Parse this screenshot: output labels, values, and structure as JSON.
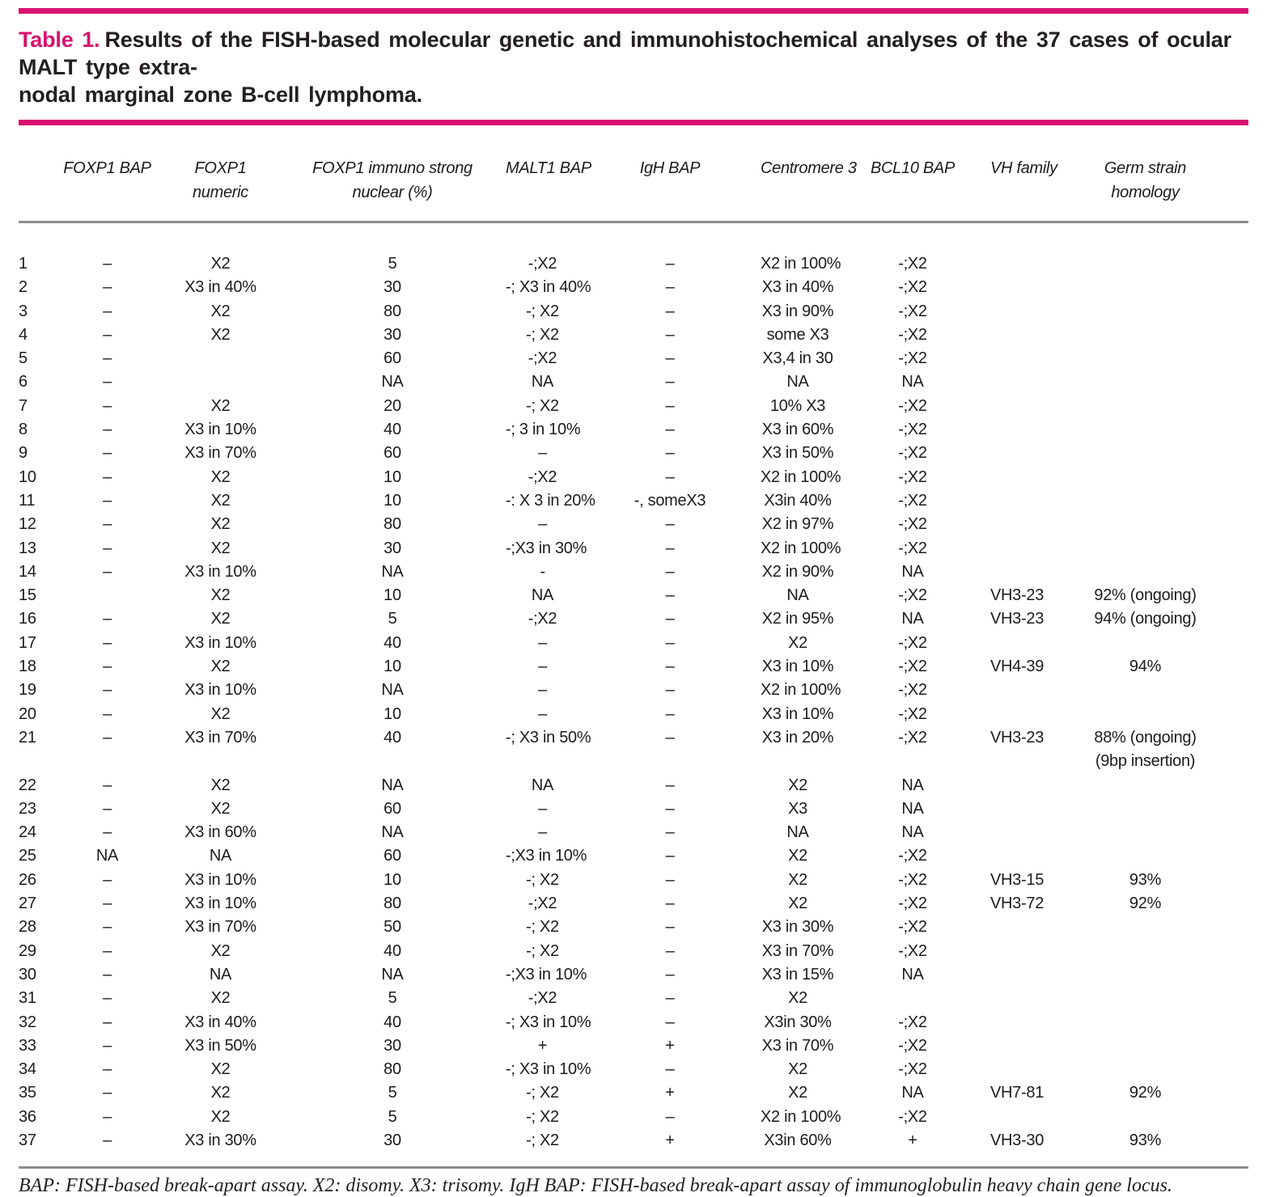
{
  "colors": {
    "accent_magenta": "#d8116f",
    "rule_gray": "#8c8c8c",
    "text": "#231f20"
  },
  "title": {
    "label": "Table 1.",
    "line1": "Results of the FISH-based molecular genetic and immunohistochemical analyses of the 37 cases of ocular MALT type extra-",
    "line2": "nodal marginal zone B-cell lymphoma."
  },
  "table": {
    "columns": [
      {
        "id": "case",
        "label": "",
        "label2": ""
      },
      {
        "id": "foxp1-bap",
        "label": "FOXP1 BAP",
        "label2": ""
      },
      {
        "id": "foxp1-numeric",
        "label": "FOXP1",
        "label2": "numeric"
      },
      {
        "id": "foxp1-immuno",
        "label": "FOXP1 immuno strong",
        "label2": "nuclear (%)"
      },
      {
        "id": "malt1-bap",
        "label": "MALT1 BAP",
        "label2": ""
      },
      {
        "id": "igh-bap",
        "label": "IgH BAP",
        "label2": ""
      },
      {
        "id": "centromere-3",
        "label": "Centromere 3",
        "label2": ""
      },
      {
        "id": "bcl10-bap",
        "label": "BCL10 BAP",
        "label2": ""
      },
      {
        "id": "vh-family",
        "label": "VH family",
        "label2": ""
      },
      {
        "id": "germ-strain",
        "label": "Germ strain",
        "label2": "homology"
      }
    ],
    "rows": [
      [
        "1",
        "–",
        "X2",
        "5",
        "-;X2",
        "–",
        "X2 in 100%",
        "-;X2",
        "",
        ""
      ],
      [
        "2",
        "–",
        "X3 in 40%",
        "30",
        "-; X3 in 40%",
        "–",
        "X3 in 40%",
        "-;X2",
        "",
        ""
      ],
      [
        "3",
        "–",
        "X2",
        "80",
        "-; X2",
        "–",
        "X3 in 90%",
        "-;X2",
        "",
        ""
      ],
      [
        "4",
        "–",
        "X2",
        "30",
        "-; X2",
        "–",
        "some X3",
        "-;X2",
        "",
        ""
      ],
      [
        "5",
        "–",
        "",
        "60",
        "-;X2",
        "–",
        "X3,4 in 30",
        "-;X2",
        "",
        ""
      ],
      [
        "6",
        "–",
        "",
        "NA",
        "NA",
        "–",
        "NA",
        "NA",
        "",
        ""
      ],
      [
        "7",
        "–",
        "X2",
        "20",
        "-; X2",
        "–",
        "10% X3",
        "-;X2",
        "",
        ""
      ],
      [
        "8",
        "–",
        "X3 in 10%",
        "40",
        "-; 3 in 10%",
        "–",
        "X3 in 60%",
        "-;X2",
        "",
        ""
      ],
      [
        "9",
        "–",
        "X3 in 70%",
        "60",
        "–",
        "–",
        "X3 in 50%",
        "-;X2",
        "",
        ""
      ],
      [
        "10",
        "–",
        "X2",
        "10",
        "-;X2",
        "–",
        "X2 in 100%",
        "-;X2",
        "",
        ""
      ],
      [
        "11",
        "–",
        "X2",
        "10",
        "-: X 3 in 20%",
        "-, someX3",
        "X3in 40%",
        "-;X2",
        "",
        ""
      ],
      [
        "12",
        "–",
        "X2",
        "80",
        "–",
        "–",
        "X2 in 97%",
        "-;X2",
        "",
        ""
      ],
      [
        "13",
        "–",
        "X2",
        "30",
        "-;X3 in 30%",
        "–",
        "X2 in 100%",
        "-;X2",
        "",
        ""
      ],
      [
        "14",
        "–",
        "X3 in 10%",
        "NA",
        "-",
        "–",
        "X2 in 90%",
        "NA",
        "",
        ""
      ],
      [
        "15",
        "",
        "X2",
        "10",
        "NA",
        "–",
        "NA",
        "-;X2",
        "VH3-23",
        "92% (ongoing)"
      ],
      [
        "16",
        "–",
        "X2",
        "5",
        "-;X2",
        "–",
        "X2 in 95%",
        "NA",
        "VH3-23",
        "94% (ongoing)"
      ],
      [
        "17",
        "–",
        "X3 in 10%",
        "40",
        "–",
        "–",
        "X2",
        "-;X2",
        "",
        ""
      ],
      [
        "18",
        "–",
        "X2",
        "10",
        "–",
        "–",
        "X3 in 10%",
        "-;X2",
        "VH4-39",
        "94%"
      ],
      [
        "19",
        "–",
        "X3 in 10%",
        "NA",
        "–",
        "–",
        "X2 in 100%",
        "-;X2",
        "",
        ""
      ],
      [
        "20",
        "–",
        "X2",
        "10",
        "–",
        "–",
        "X3 in 10%",
        "-;X2",
        "",
        ""
      ],
      [
        "21",
        "–",
        "X3 in 70%",
        "40",
        "-; X3 in 50%",
        "–",
        "X3 in 20%",
        "-;X2",
        "VH3-23",
        "88% (ongoing)\n(9bp insertion)"
      ],
      [
        "22",
        "–",
        "X2",
        "NA",
        "NA",
        "–",
        "X2",
        "NA",
        "",
        ""
      ],
      [
        "23",
        "–",
        "X2",
        "60",
        "–",
        "–",
        "X3",
        "NA",
        "",
        ""
      ],
      [
        "24",
        "–",
        "X3 in 60%",
        "NA",
        "–",
        "–",
        "NA",
        "NA",
        "",
        ""
      ],
      [
        "25",
        "NA",
        "NA",
        "60",
        "-;X3 in 10%",
        "–",
        "X2",
        "-;X2",
        "",
        ""
      ],
      [
        "26",
        "–",
        "X3 in 10%",
        "10",
        "-; X2",
        "–",
        "X2",
        "-;X2",
        "VH3-15",
        "93%"
      ],
      [
        "27",
        "–",
        "X3 in 10%",
        "80",
        "-;X2",
        "–",
        "X2",
        "-;X2",
        "VH3-72",
        "92%"
      ],
      [
        "28",
        "–",
        "X3 in 70%",
        "50",
        "-; X2",
        "–",
        "X3 in 30%",
        "-;X2",
        "",
        ""
      ],
      [
        "29",
        "–",
        "X2",
        "40",
        "-; X2",
        "–",
        "X3 in 70%",
        "-;X2",
        "",
        ""
      ],
      [
        "30",
        "–",
        "NA",
        "NA",
        "-;X3 in 10%",
        "–",
        "X3 in 15%",
        "NA",
        "",
        ""
      ],
      [
        "31",
        "–",
        "X2",
        "5",
        "-;X2",
        "–",
        "X2",
        "",
        "",
        ""
      ],
      [
        "32",
        "–",
        "X3 in 40%",
        "40",
        "-; X3 in 10%",
        "–",
        "X3in 30%",
        "-;X2",
        "",
        ""
      ],
      [
        "33",
        "–",
        "X3 in 50%",
        "30",
        "+",
        "+",
        "X3 in 70%",
        "-;X2",
        "",
        ""
      ],
      [
        "34",
        "–",
        "X2",
        "80",
        "-; X3 in 10%",
        "–",
        "X2",
        "-;X2",
        "",
        ""
      ],
      [
        "35",
        "–",
        "X2",
        "5",
        "-; X2",
        "+",
        "X2",
        "NA",
        "VH7-81",
        "92%"
      ],
      [
        "36",
        "–",
        "X2",
        "5",
        "-; X2",
        "–",
        "X2 in 100%",
        "-;X2",
        "",
        ""
      ],
      [
        "37",
        "–",
        "X3 in 30%",
        "30",
        "-; X2",
        "+",
        "X3in 60%",
        "+",
        "VH3-30",
        "93%"
      ]
    ]
  },
  "footnote": "BAP: FISH-based break-apart assay. X2: disomy. X3: trisomy. IgH BAP: FISH-based break-apart assay of immunoglobulin heavy chain gene locus."
}
